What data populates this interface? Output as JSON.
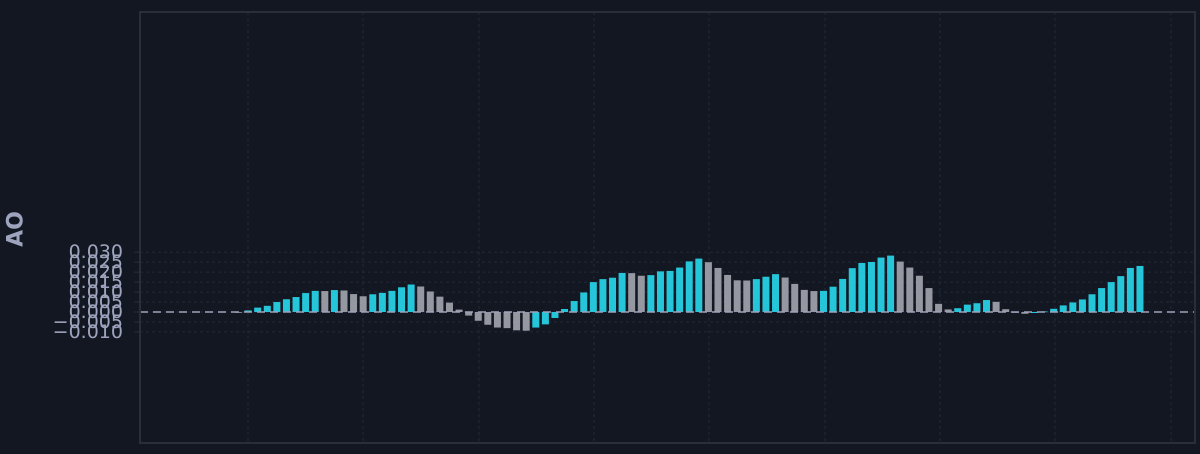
{
  "chart_data": {
    "type": "bar",
    "ylabel": "AO",
    "ylim": [
      -0.0132,
      0.0303
    ],
    "y_ticks": [
      "0.030",
      "0.025",
      "0.020",
      "0.015",
      "0.010",
      "0.005",
      "0.000",
      "−0.005",
      "−0.010"
    ],
    "y_tick_values": [
      0.03,
      0.025,
      0.02,
      0.015,
      0.01,
      0.005,
      0.0,
      -0.005,
      -0.01
    ],
    "grid": true,
    "zero_line": "dashed",
    "series": [
      {
        "values": [
          -0.0004,
          0.0008,
          0.0022,
          0.0031,
          0.005,
          0.0064,
          0.0075,
          0.0095,
          0.0106,
          0.0105,
          0.011,
          0.0108,
          0.009,
          0.0079,
          0.0089,
          0.0096,
          0.0106,
          0.0124,
          0.0138,
          0.0128,
          0.0103,
          0.0077,
          0.0047,
          0.0012,
          -0.0018,
          -0.0044,
          -0.0064,
          -0.0078,
          -0.0081,
          -0.0092,
          -0.0094,
          -0.0078,
          -0.0062,
          -0.003,
          0.0015,
          0.0055,
          0.0098,
          0.015,
          0.0165,
          0.0172,
          0.0196,
          0.0195,
          0.0182,
          0.0185,
          0.0204,
          0.0206,
          0.0223,
          0.0254,
          0.0268,
          0.025,
          0.0221,
          0.0186,
          0.0159,
          0.0158,
          0.0165,
          0.0177,
          0.019,
          0.0173,
          0.0141,
          0.0111,
          0.0105,
          0.0106,
          0.0127,
          0.0166,
          0.022,
          0.0246,
          0.0251,
          0.0273,
          0.0283,
          0.0253,
          0.0223,
          0.0182,
          0.012,
          0.0041,
          0.0013,
          0.0019,
          0.0037,
          0.0044,
          0.006,
          0.0051,
          0.0014,
          -0.0004,
          -0.0009,
          -0.0005,
          0.0003,
          0.0016,
          0.0033,
          0.0048,
          0.0063,
          0.0089,
          0.012,
          0.015,
          0.018,
          0.0221,
          0.0231
        ],
        "colors": [
          "down",
          "up",
          "up",
          "up",
          "up",
          "up",
          "up",
          "up",
          "up",
          "down",
          "up",
          "down",
          "down",
          "down",
          "up",
          "up",
          "up",
          "up",
          "up",
          "down",
          "down",
          "down",
          "down",
          "down",
          "down",
          "down",
          "down",
          "down",
          "down",
          "down",
          "down",
          "up",
          "up",
          "up",
          "up",
          "up",
          "up",
          "up",
          "up",
          "up",
          "up",
          "down",
          "down",
          "up",
          "up",
          "up",
          "up",
          "up",
          "up",
          "down",
          "down",
          "down",
          "down",
          "down",
          "up",
          "up",
          "up",
          "down",
          "down",
          "down",
          "down",
          "up",
          "up",
          "up",
          "up",
          "up",
          "up",
          "up",
          "up",
          "down",
          "down",
          "down",
          "down",
          "down",
          "down",
          "up",
          "up",
          "up",
          "up",
          "down",
          "down",
          "down",
          "down",
          "up",
          "up",
          "up",
          "up",
          "up",
          "up",
          "up",
          "up",
          "up",
          "up",
          "up",
          "up"
        ]
      }
    ],
    "palette": {
      "up": "#26c6da",
      "down": "#9598a1",
      "background": "#131722",
      "grid": "#232838",
      "axis": "#2a2e39",
      "text": "#9ea4bd",
      "zero_line": "#9ea4bd"
    }
  }
}
